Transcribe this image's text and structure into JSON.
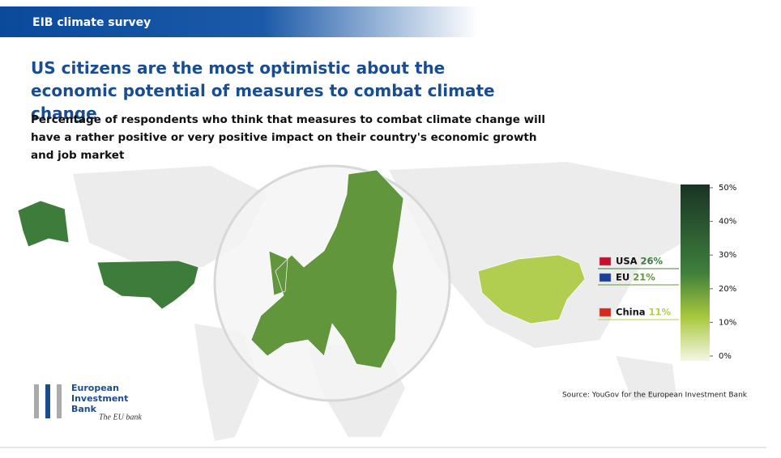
{
  "header": {
    "label": "EIB climate survey"
  },
  "chart_data": {
    "type": "choropleth",
    "title": "US citizens are the most optimistic about the economic potential of measures to combat climate change",
    "subtitle": "Percentage of respondents who think that measures to combat climate change will have a rather positive or very positive impact on their country's economic growth and job market",
    "categories": [
      "USA",
      "EU",
      "China"
    ],
    "values": [
      26,
      21,
      11
    ],
    "value_labels": [
      "26%",
      "21%",
      "11%"
    ],
    "clim": [
      0,
      50
    ],
    "cticks": [
      {
        "value": 0,
        "label": "0%"
      },
      {
        "value": 10,
        "label": "10%"
      },
      {
        "value": 20,
        "label": "20%"
      },
      {
        "value": 30,
        "label": "30%"
      },
      {
        "value": 40,
        "label": "40%"
      },
      {
        "value": 50,
        "label": "50%"
      }
    ],
    "colorscale": [
      "#f4f7e4",
      "#a8c83c",
      "#3f7f3c",
      "#2b5a31",
      "#1b3324"
    ],
    "source": "Source: YouGov for the European Investment Bank"
  },
  "logo": {
    "name": [
      "European",
      "Investment",
      "Bank"
    ],
    "tagline": "The EU bank"
  }
}
